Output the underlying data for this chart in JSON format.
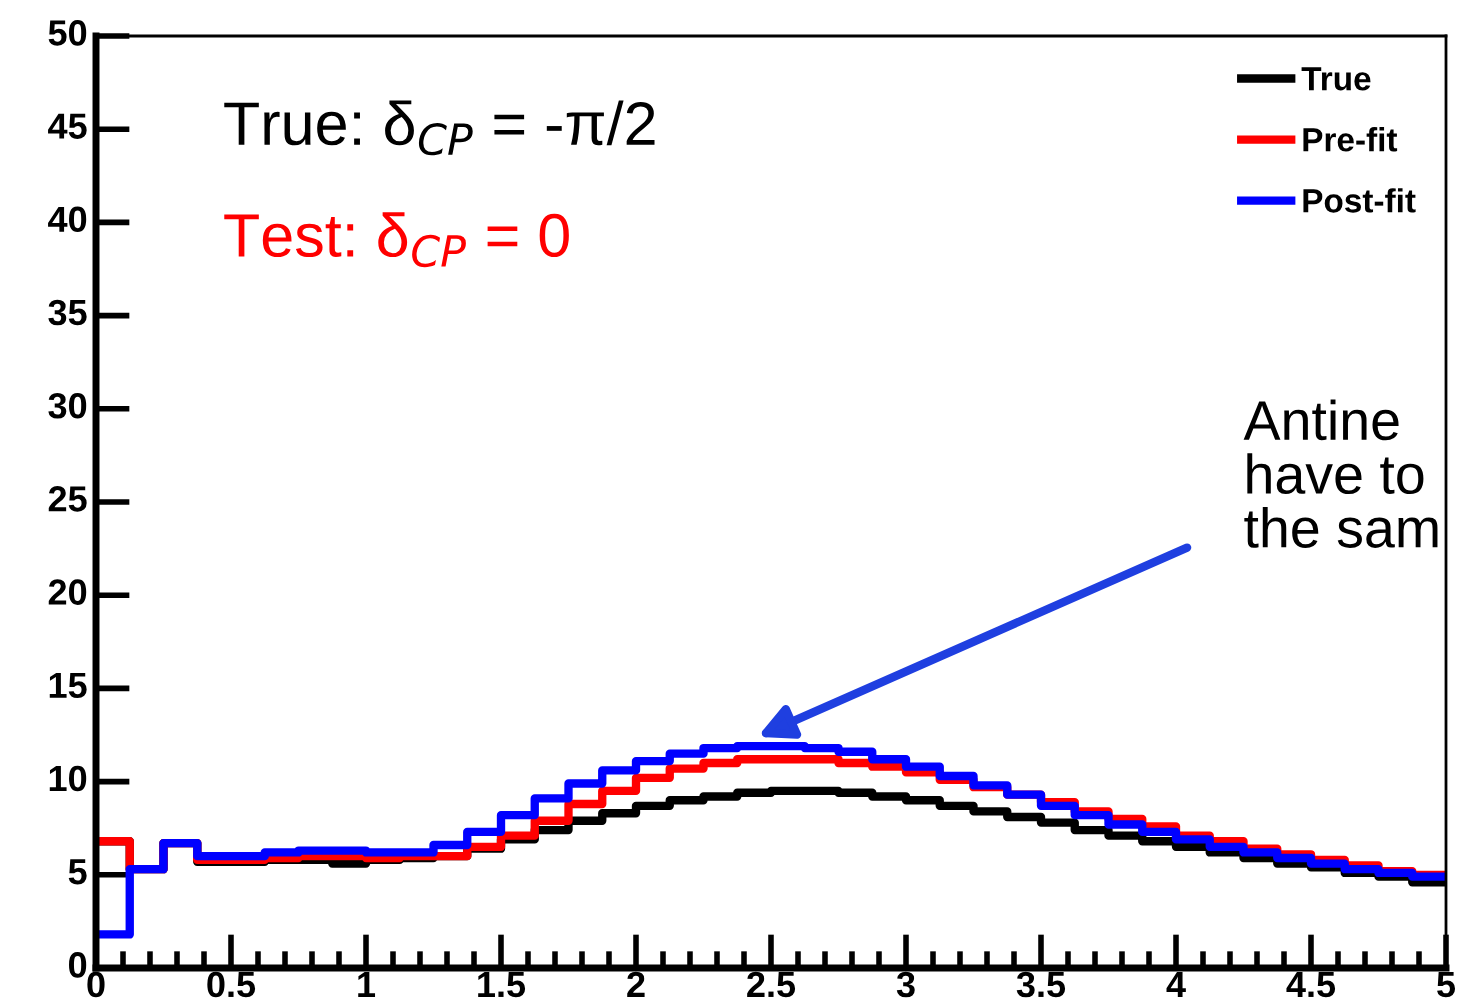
{
  "chart_data": {
    "type": "step",
    "x": [
      0,
      0.125,
      0.25,
      0.375,
      0.5,
      0.625,
      0.75,
      0.875,
      1,
      1.125,
      1.25,
      1.375,
      1.5,
      1.625,
      1.75,
      1.875,
      2,
      2.125,
      2.25,
      2.375,
      2.5,
      2.625,
      2.75,
      2.875,
      3,
      3.125,
      3.25,
      3.375,
      3.5,
      3.625,
      3.75,
      3.875,
      4,
      4.125,
      4.25,
      4.375,
      4.5,
      4.625,
      4.75,
      4.875,
      5
    ],
    "series": [
      {
        "name": "True",
        "color": "#000000",
        "values": [
          6.8,
          5.3,
          6.7,
          5.7,
          5.7,
          5.8,
          5.8,
          5.6,
          5.8,
          5.9,
          6.0,
          6.4,
          6.9,
          7.4,
          7.9,
          8.3,
          8.7,
          9.0,
          9.2,
          9.4,
          9.5,
          9.5,
          9.4,
          9.2,
          9.0,
          8.7,
          8.4,
          8.1,
          7.8,
          7.4,
          7.1,
          6.8,
          6.5,
          6.2,
          5.9,
          5.6,
          5.4,
          5.1,
          4.9,
          4.6,
          4.6
        ]
      },
      {
        "name": "Pre-fit",
        "color": "#ff0000",
        "values": [
          6.8,
          5.3,
          6.7,
          5.8,
          5.8,
          5.9,
          6.0,
          6.0,
          5.9,
          6.0,
          6.0,
          6.5,
          7.1,
          7.9,
          8.8,
          9.5,
          10.2,
          10.7,
          11.0,
          11.2,
          11.2,
          11.2,
          11.0,
          10.8,
          10.5,
          10.1,
          9.7,
          9.3,
          8.9,
          8.4,
          8.0,
          7.6,
          7.1,
          6.8,
          6.4,
          6.1,
          5.8,
          5.5,
          5.2,
          5.0,
          5.0
        ]
      },
      {
        "name": "Post-fit",
        "color": "#0000ff",
        "values": [
          1.8,
          5.3,
          6.7,
          6.0,
          6.0,
          6.2,
          6.3,
          6.3,
          6.2,
          6.2,
          6.6,
          7.3,
          8.2,
          9.1,
          9.9,
          10.6,
          11.1,
          11.5,
          11.8,
          11.9,
          11.9,
          11.8,
          11.6,
          11.2,
          10.8,
          10.3,
          9.8,
          9.3,
          8.7,
          8.2,
          7.7,
          7.3,
          6.9,
          6.5,
          6.2,
          5.9,
          5.6,
          5.3,
          5.1,
          4.9,
          4.9
        ]
      }
    ],
    "xlim": [
      0,
      5
    ],
    "ylim": [
      0,
      50
    ],
    "xticks": [
      0,
      0.5,
      1,
      1.5,
      2,
      2.5,
      3,
      3.5,
      4,
      4.5,
      5
    ],
    "yticks": [
      0,
      5,
      10,
      15,
      20,
      25,
      30,
      35,
      40,
      45,
      50
    ],
    "legend": "top right",
    "grid": false,
    "marker": "none",
    "line_style": "solid",
    "annotations": [
      "True: δ$_{CP}$ = -π/2",
      "Test: δ$_{CP}$ = 0",
      {
        "text": "Antine\nhave to\nthe sam",
        "x": 2.45,
        "y": 12.4
      }
    ]
  }
}
